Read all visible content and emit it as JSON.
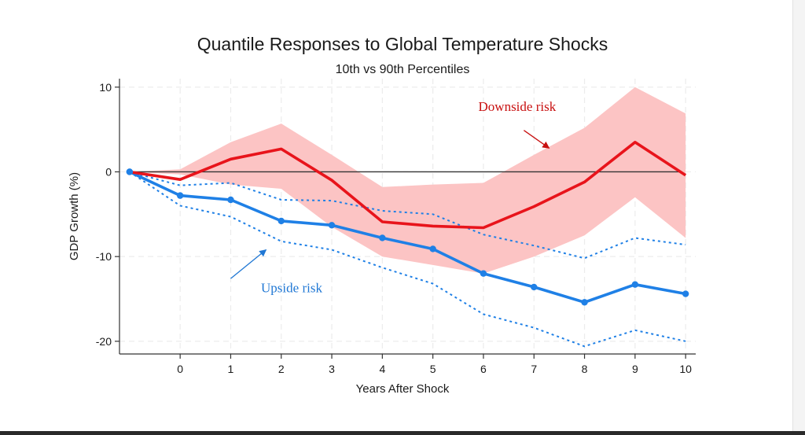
{
  "chart_data": {
    "type": "line",
    "title": "Quantile Responses to Global Temperature Shocks",
    "subtitle": "10th vs 90th Percentiles",
    "xlabel": "Years After Shock",
    "ylabel": "GDP Growth (%)",
    "x": [
      -1,
      0,
      1,
      2,
      3,
      4,
      5,
      6,
      7,
      8,
      9,
      10
    ],
    "x_tick_values": [
      0,
      1,
      2,
      3,
      4,
      5,
      6,
      7,
      8,
      9,
      10
    ],
    "x_tick_labels": [
      "0",
      "1",
      "2",
      "3",
      "4",
      "5",
      "6",
      "7",
      "8",
      "9",
      "10"
    ],
    "y_tick_values": [
      10,
      0,
      -10,
      -20
    ],
    "y_tick_labels": [
      "10",
      "0",
      "-10",
      "-20"
    ],
    "xlim": [
      -1.2,
      10.2
    ],
    "ylim": [
      -21.5,
      11
    ],
    "grid": true,
    "zero_line": true,
    "series": [
      {
        "color": "#e8141b",
        "band_color": "#fcc4c4",
        "values": [
          0,
          -0.9,
          1.5,
          2.7,
          -1.0,
          -5.9,
          -6.4,
          -6.6,
          -4.1,
          -1.2,
          3.5,
          -0.4
        ],
        "band_lower": [
          0,
          -0.3,
          -1.5,
          -2.0,
          -6.5,
          -10.0,
          -11.0,
          -12.0,
          -10.0,
          -7.5,
          -3.0,
          -7.8
        ],
        "band_upper": [
          0,
          0.3,
          3.5,
          5.7,
          2.0,
          -1.8,
          -1.5,
          -1.3,
          2.0,
          5.2,
          10.0,
          6.9
        ]
      },
      {
        "color": "#1f80e6",
        "values": [
          0,
          -2.8,
          -3.3,
          -5.8,
          -6.3,
          -7.8,
          -9.1,
          -12.0,
          -13.6,
          -15.4,
          -13.3,
          -14.4
        ],
        "band_lower": [
          0,
          -4.0,
          -5.3,
          -8.2,
          -9.2,
          -11.3,
          -13.2,
          -16.8,
          -18.4,
          -20.6,
          -18.7,
          -20.0
        ],
        "band_upper": [
          0,
          -1.6,
          -1.3,
          -3.3,
          -3.4,
          -4.6,
          -5.0,
          -7.4,
          -8.7,
          -10.2,
          -7.8,
          -8.6
        ]
      }
    ],
    "annotations": [
      {
        "text": "Downside risk",
        "color": "#c81010",
        "x": 5.9,
        "y": 7.2,
        "arrow_from": [
          6.8,
          4.9
        ],
        "arrow_to": [
          7.3,
          2.8
        ]
      },
      {
        "text": "Upside risk",
        "color": "#1f77d4",
        "x": 1.6,
        "y": -14.2,
        "arrow_from": [
          1.0,
          -12.6
        ],
        "arrow_to": [
          1.7,
          -9.2
        ]
      }
    ]
  }
}
